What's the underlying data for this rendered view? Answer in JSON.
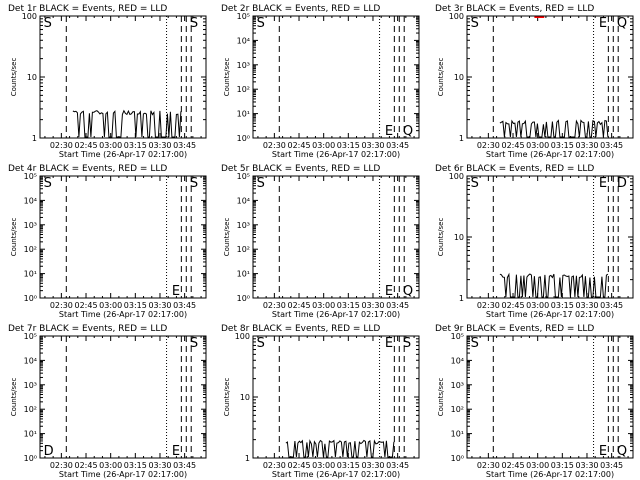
{
  "colors": {
    "events": "#000000",
    "lld": "#ff0000",
    "background": "#ffffff"
  },
  "chart_data": [
    {
      "type": "line",
      "title": "Det 1r BLACK = Events, RED = LLD",
      "xlabel": "Start Time (26-Apr-17 02:17:00)",
      "ylabel": "Counts/sec",
      "x_tick_labels": [
        "02:30",
        "02:45",
        "03:00",
        "03:15",
        "03:30",
        "03:45"
      ],
      "x_tick_minutes": [
        30,
        45,
        60,
        75,
        90,
        105
      ],
      "xlim_minutes": [
        17,
        118
      ],
      "yscale": "log",
      "ylim": [
        1,
        100
      ],
      "y_tick_labels": [
        "1",
        "10",
        "100"
      ],
      "y_ticks": [
        1,
        10,
        100
      ],
      "dashed_lines_minutes": [
        33,
        103,
        106,
        109
      ],
      "dotted_lines_minutes": [
        94
      ],
      "markers": [
        {
          "label": "S",
          "x_minutes": 18
        },
        {
          "label": "S",
          "x_minutes": 107
        }
      ],
      "events": [
        {
          "start_min": 37,
          "end_min": 103,
          "level": 2.6
        }
      ],
      "lld": []
    },
    {
      "type": "line",
      "title": "Det 2r BLACK = Events, RED = LLD",
      "xlabel": "Start Time (26-Apr-17 02:17:00)",
      "ylabel": "Counts/sec",
      "x_tick_labels": [
        "02:30",
        "02:45",
        "03:00",
        "03:15",
        "03:30",
        "03:45"
      ],
      "x_tick_minutes": [
        30,
        45,
        60,
        75,
        90,
        105
      ],
      "xlim_minutes": [
        17,
        118
      ],
      "yscale": "log",
      "ylim": [
        1,
        100000
      ],
      "y_tick_labels": [
        "10⁰",
        "10¹",
        "10²",
        "10³",
        "10⁴",
        "10⁵"
      ],
      "y_ticks": [
        1,
        10,
        100,
        1000,
        10000,
        100000
      ],
      "dashed_lines_minutes": [
        33,
        103,
        106,
        109
      ],
      "dotted_lines_minutes": [
        94
      ],
      "markers": [
        {
          "label": "S",
          "x_minutes": 18
        },
        {
          "label": "E",
          "x_minutes": 96
        },
        {
          "label": "Q",
          "x_minutes": 107
        }
      ],
      "events": [],
      "lld": []
    },
    {
      "type": "line",
      "title": "Det 3r BLACK = Events, RED = LLD",
      "xlabel": "Start Time (26-Apr-17 02:17:00)",
      "ylabel": "Counts/sec",
      "x_tick_labels": [
        "02:30",
        "02:45",
        "03:00",
        "03:15",
        "03:30",
        "03:45"
      ],
      "x_tick_minutes": [
        30,
        45,
        60,
        75,
        90,
        105
      ],
      "xlim_minutes": [
        17,
        118
      ],
      "yscale": "log",
      "ylim": [
        1,
        100
      ],
      "y_tick_labels": [
        "1",
        "10",
        "100"
      ],
      "y_ticks": [
        1,
        10,
        100
      ],
      "dashed_lines_minutes": [
        33,
        103,
        106,
        109
      ],
      "dotted_lines_minutes": [
        94
      ],
      "markers": [
        {
          "label": "S",
          "x_minutes": 18
        },
        {
          "label": "E",
          "x_minutes": 96
        },
        {
          "label": "Q",
          "x_minutes": 107
        }
      ],
      "events": [
        {
          "start_min": 37,
          "end_min": 103,
          "level": 1.8
        }
      ],
      "lld": [
        {
          "start_min": 58,
          "end_min": 64,
          "level": 100
        }
      ]
    },
    {
      "type": "line",
      "title": "Det 4r BLACK = Events, RED = LLD",
      "xlabel": "Start Time (26-Apr-17 02:17:00)",
      "ylabel": "Counts/sec",
      "x_tick_labels": [
        "02:30",
        "02:45",
        "03:00",
        "03:15",
        "03:30",
        "03:45"
      ],
      "x_tick_minutes": [
        30,
        45,
        60,
        75,
        90,
        105
      ],
      "xlim_minutes": [
        17,
        118
      ],
      "yscale": "log",
      "ylim": [
        1,
        100000
      ],
      "y_tick_labels": [
        "10⁰",
        "10¹",
        "10²",
        "10³",
        "10⁴",
        "10⁵"
      ],
      "y_ticks": [
        1,
        10,
        100,
        1000,
        10000,
        100000
      ],
      "dashed_lines_minutes": [
        33,
        103,
        106,
        109
      ],
      "dotted_lines_minutes": [
        94
      ],
      "markers": [
        {
          "label": "S",
          "x_minutes": 18
        },
        {
          "label": "E",
          "x_minutes": 96
        },
        {
          "label": "S",
          "x_minutes": 107
        }
      ],
      "events": [],
      "lld": []
    },
    {
      "type": "line",
      "title": "Det 5r BLACK = Events, RED = LLD",
      "xlabel": "Start Time (26-Apr-17 02:17:00)",
      "ylabel": "Counts/sec",
      "x_tick_labels": [
        "02:30",
        "02:45",
        "03:00",
        "03:15",
        "03:30",
        "03:45"
      ],
      "x_tick_minutes": [
        30,
        45,
        60,
        75,
        90,
        105
      ],
      "xlim_minutes": [
        17,
        118
      ],
      "yscale": "log",
      "ylim": [
        1,
        100000
      ],
      "y_tick_labels": [
        "10⁰",
        "10¹",
        "10²",
        "10³",
        "10⁴",
        "10⁵"
      ],
      "y_ticks": [
        1,
        10,
        100,
        1000,
        10000,
        100000
      ],
      "dashed_lines_minutes": [
        33,
        103,
        106,
        109
      ],
      "dotted_lines_minutes": [
        94
      ],
      "markers": [
        {
          "label": "S",
          "x_minutes": 18
        },
        {
          "label": "E",
          "x_minutes": 96
        },
        {
          "label": "Q",
          "x_minutes": 107
        }
      ],
      "events": [],
      "lld": []
    },
    {
      "type": "line",
      "title": "Det 6r BLACK = Events, RED = LLD",
      "xlabel": "Start Time (26-Apr-17 02:17:00)",
      "ylabel": "Counts/sec",
      "x_tick_labels": [
        "02:30",
        "02:45",
        "03:00",
        "03:15",
        "03:30",
        "03:45"
      ],
      "x_tick_minutes": [
        30,
        45,
        60,
        75,
        90,
        105
      ],
      "xlim_minutes": [
        17,
        118
      ],
      "yscale": "log",
      "ylim": [
        1,
        100
      ],
      "y_tick_labels": [
        "1",
        "10",
        "100"
      ],
      "y_ticks": [
        1,
        10,
        100
      ],
      "dashed_lines_minutes": [
        33,
        103,
        106,
        109
      ],
      "dotted_lines_minutes": [
        94
      ],
      "markers": [
        {
          "label": "S",
          "x_minutes": 18
        },
        {
          "label": "E",
          "x_minutes": 96
        },
        {
          "label": "D",
          "x_minutes": 107
        }
      ],
      "events": [
        {
          "start_min": 37,
          "end_min": 103,
          "level": 2.3
        }
      ],
      "lld": []
    },
    {
      "type": "line",
      "title": "Det 7r BLACK = Events, RED = LLD",
      "xlabel": "Start Time (26-Apr-17 02:17:00)",
      "ylabel": "Counts/sec",
      "x_tick_labels": [
        "02:30",
        "02:45",
        "03:00",
        "03:15",
        "03:30",
        "03:45"
      ],
      "x_tick_minutes": [
        30,
        45,
        60,
        75,
        90,
        105
      ],
      "xlim_minutes": [
        17,
        118
      ],
      "yscale": "log",
      "ylim": [
        1,
        100000
      ],
      "y_tick_labels": [
        "10⁰",
        "10¹",
        "10²",
        "10³",
        "10⁴",
        "10⁵"
      ],
      "y_ticks": [
        1,
        10,
        100,
        1000,
        10000,
        100000
      ],
      "dashed_lines_minutes": [
        33,
        103,
        106,
        109
      ],
      "dotted_lines_minutes": [
        94
      ],
      "markers": [
        {
          "label": "D",
          "x_minutes": 18
        },
        {
          "label": "E",
          "x_minutes": 96
        },
        {
          "label": "S",
          "x_minutes": 107
        }
      ],
      "events": [],
      "lld": []
    },
    {
      "type": "line",
      "title": "Det 8r BLACK = Events, RED = LLD",
      "xlabel": "Start Time (26-Apr-17 02:17:00)",
      "ylabel": "Counts/sec",
      "x_tick_labels": [
        "02:30",
        "02:45",
        "03:00",
        "03:15",
        "03:30",
        "03:45"
      ],
      "x_tick_minutes": [
        30,
        45,
        60,
        75,
        90,
        105
      ],
      "xlim_minutes": [
        17,
        118
      ],
      "yscale": "log",
      "ylim": [
        1,
        100
      ],
      "y_tick_labels": [
        "1",
        "10",
        "100"
      ],
      "y_ticks": [
        1,
        10,
        100
      ],
      "dashed_lines_minutes": [
        33,
        103,
        106,
        109
      ],
      "dotted_lines_minutes": [
        94
      ],
      "markers": [
        {
          "label": "S",
          "x_minutes": 18
        },
        {
          "label": "E",
          "x_minutes": 96
        },
        {
          "label": "S",
          "x_minutes": 107
        }
      ],
      "events": [
        {
          "start_min": 37,
          "end_min": 103,
          "level": 1.8
        }
      ],
      "lld": []
    },
    {
      "type": "line",
      "title": "Det 9r BLACK = Events, RED = LLD",
      "xlabel": "Start Time (26-Apr-17 02:17:00)",
      "ylabel": "Counts/sec",
      "x_tick_labels": [
        "02:30",
        "02:45",
        "03:00",
        "03:15",
        "03:30",
        "03:45"
      ],
      "x_tick_minutes": [
        30,
        45,
        60,
        75,
        90,
        105
      ],
      "xlim_minutes": [
        17,
        118
      ],
      "yscale": "log",
      "ylim": [
        1,
        100000
      ],
      "y_tick_labels": [
        "10⁰",
        "10¹",
        "10²",
        "10³",
        "10⁴",
        "10⁵"
      ],
      "y_ticks": [
        1,
        10,
        100,
        1000,
        10000,
        100000
      ],
      "dashed_lines_minutes": [
        33,
        103,
        106,
        109
      ],
      "dotted_lines_minutes": [
        94
      ],
      "markers": [
        {
          "label": "S",
          "x_minutes": 18
        },
        {
          "label": "E",
          "x_minutes": 96
        },
        {
          "label": "Q",
          "x_minutes": 107
        }
      ],
      "events": [],
      "lld": []
    }
  ]
}
